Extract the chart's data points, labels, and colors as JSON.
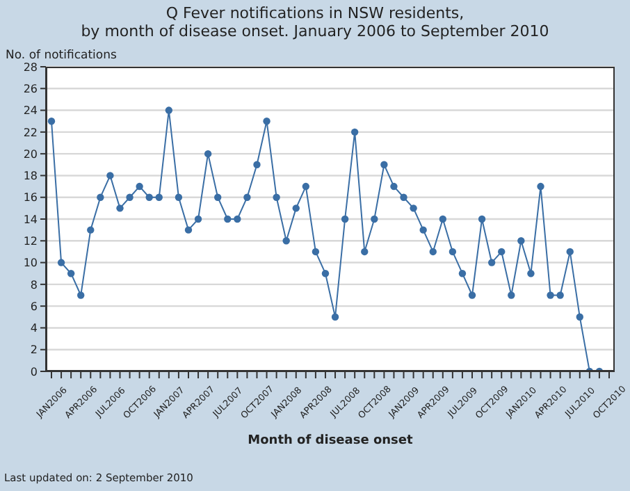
{
  "chart_data": {
    "type": "line",
    "title": "Q Fever notifications in NSW residents,",
    "subtitle": "by month of disease onset. January 2006 to September 2010",
    "xlabel": "Month of disease onset",
    "ylabel": "No. of notifications",
    "annotations": [
      "Last updated on: 2 September 2010"
    ],
    "categories": [
      "JAN2006",
      null,
      null,
      "APR2006",
      null,
      null,
      "JUL2006",
      null,
      null,
      "OCT2006",
      null,
      null,
      "JAN2007",
      null,
      null,
      "APR2007",
      null,
      null,
      "JUL2007",
      null,
      null,
      "OCT2007",
      null,
      null,
      "JAN2008",
      null,
      null,
      "APR2008",
      null,
      null,
      "JUL2008",
      null,
      null,
      "OCT2008",
      null,
      null,
      "JAN2009",
      null,
      null,
      "APR2009",
      null,
      null,
      "JUL2009",
      null,
      null,
      "OCT2009",
      null,
      null,
      "JAN2010",
      null,
      null,
      "APR2010",
      null,
      null,
      "JUL2010",
      null,
      null,
      "OCT2010"
    ],
    "series": [
      {
        "color": "#3a6ea5",
        "values": [
          23,
          10,
          9,
          7,
          13,
          16,
          18,
          15,
          16,
          17,
          16,
          16,
          24,
          16,
          13,
          14,
          20,
          16,
          14,
          14,
          16,
          19,
          23,
          16,
          12,
          15,
          17,
          11,
          9,
          5,
          14,
          22,
          11,
          14,
          19,
          17,
          16,
          15,
          13,
          11,
          14,
          11,
          9,
          7,
          14,
          10,
          11,
          7,
          12,
          9,
          17,
          7,
          7,
          11,
          5,
          0,
          0,
          null
        ]
      }
    ],
    "ylim": [
      0,
      28
    ],
    "yticks": [
      0,
      2,
      4,
      6,
      8,
      10,
      12,
      14,
      16,
      18,
      20,
      22,
      24,
      26,
      28
    ],
    "grid": "y",
    "marker": "circle",
    "line_style": "solid",
    "legend": false
  }
}
